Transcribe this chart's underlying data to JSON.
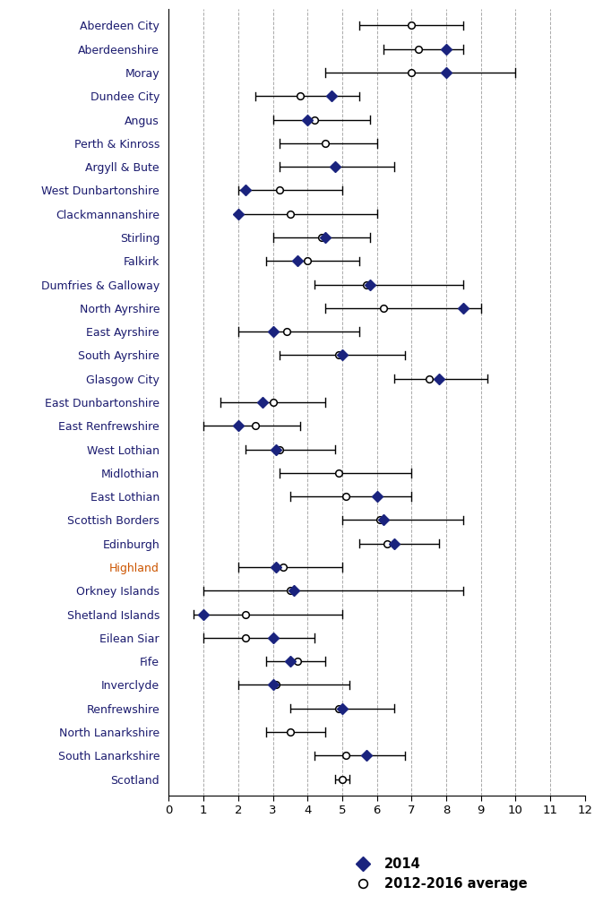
{
  "entries": [
    {
      "label": "Aberdeen City",
      "v2014": null,
      "avg": 7.0,
      "lo": 5.5,
      "hi": 8.5
    },
    {
      "label": "Aberdeenshire",
      "v2014": 8.0,
      "avg": 7.2,
      "lo": 6.2,
      "hi": 8.5
    },
    {
      "label": "Moray",
      "v2014": 8.0,
      "avg": 7.0,
      "lo": 4.5,
      "hi": 10.0
    },
    {
      "label": "Dundee City",
      "v2014": 4.7,
      "avg": 3.8,
      "lo": 2.5,
      "hi": 5.5
    },
    {
      "label": "Angus",
      "v2014": 4.0,
      "avg": 4.2,
      "lo": 3.0,
      "hi": 5.8
    },
    {
      "label": "Perth & Kinross",
      "v2014": null,
      "avg": 4.5,
      "lo": 3.2,
      "hi": 6.0
    },
    {
      "label": "Argyll & Bute",
      "v2014": 4.8,
      "avg": 4.8,
      "lo": 3.2,
      "hi": 6.5
    },
    {
      "label": "West Dunbartonshire",
      "v2014": 2.2,
      "avg": 3.2,
      "lo": 2.0,
      "hi": 5.0
    },
    {
      "label": "Clackmannanshire",
      "v2014": 2.0,
      "avg": 3.5,
      "lo": 2.0,
      "hi": 6.0
    },
    {
      "label": "Stirling",
      "v2014": 4.5,
      "avg": 4.4,
      "lo": 3.0,
      "hi": 5.8
    },
    {
      "label": "Falkirk",
      "v2014": 3.7,
      "avg": 4.0,
      "lo": 2.8,
      "hi": 5.5
    },
    {
      "label": "Dumfries & Galloway",
      "v2014": 5.8,
      "avg": 5.7,
      "lo": 4.2,
      "hi": 8.5
    },
    {
      "label": "North Ayrshire",
      "v2014": 8.5,
      "avg": 6.2,
      "lo": 4.5,
      "hi": 9.0
    },
    {
      "label": "East Ayrshire",
      "v2014": 3.0,
      "avg": 3.4,
      "lo": 2.0,
      "hi": 5.5
    },
    {
      "label": "South Ayrshire",
      "v2014": 5.0,
      "avg": 4.9,
      "lo": 3.2,
      "hi": 6.8
    },
    {
      "label": "Glasgow City",
      "v2014": 7.8,
      "avg": 7.5,
      "lo": 6.5,
      "hi": 9.2
    },
    {
      "label": "East Dunbartonshire",
      "v2014": 2.7,
      "avg": 3.0,
      "lo": 1.5,
      "hi": 4.5
    },
    {
      "label": "East Renfrewshire",
      "v2014": 2.0,
      "avg": 2.5,
      "lo": 1.0,
      "hi": 3.8
    },
    {
      "label": "West Lothian",
      "v2014": 3.1,
      "avg": 3.2,
      "lo": 2.2,
      "hi": 4.8
    },
    {
      "label": "Midlothian",
      "v2014": null,
      "avg": 4.9,
      "lo": 3.2,
      "hi": 7.0
    },
    {
      "label": "East Lothian",
      "v2014": 6.0,
      "avg": 5.1,
      "lo": 3.5,
      "hi": 7.0
    },
    {
      "label": "Scottish Borders",
      "v2014": 6.2,
      "avg": 6.1,
      "lo": 5.0,
      "hi": 8.5
    },
    {
      "label": "Edinburgh",
      "v2014": 6.5,
      "avg": 6.3,
      "lo": 5.5,
      "hi": 7.8
    },
    {
      "label": "Highland",
      "v2014": 3.1,
      "avg": 3.3,
      "lo": 2.0,
      "hi": 5.0
    },
    {
      "label": "Orkney Islands",
      "v2014": 3.6,
      "avg": 3.5,
      "lo": 1.0,
      "hi": 8.5
    },
    {
      "label": "Shetland Islands",
      "v2014": 1.0,
      "avg": 2.2,
      "lo": 0.7,
      "hi": 5.0
    },
    {
      "label": "Eilean Siar",
      "v2014": 3.0,
      "avg": 2.2,
      "lo": 1.0,
      "hi": 4.2
    },
    {
      "label": "Fife",
      "v2014": 3.5,
      "avg": 3.7,
      "lo": 2.8,
      "hi": 4.5
    },
    {
      "label": "Inverclyde",
      "v2014": 3.0,
      "avg": 3.1,
      "lo": 2.0,
      "hi": 5.2
    },
    {
      "label": "Renfrewshire",
      "v2014": 5.0,
      "avg": 4.9,
      "lo": 3.5,
      "hi": 6.5
    },
    {
      "label": "North Lanarkshire",
      "v2014": null,
      "avg": 3.5,
      "lo": 2.8,
      "hi": 4.5
    },
    {
      "label": "South Lanarkshire",
      "v2014": 5.7,
      "avg": 5.1,
      "lo": 4.2,
      "hi": 6.8
    },
    {
      "label": "Scotland",
      "v2014": null,
      "avg": 5.0,
      "lo": 4.8,
      "hi": 5.2
    }
  ],
  "highlight_orange": [
    "Highland"
  ],
  "diamond_color": "#1a237e",
  "circle_facecolor": "white",
  "circle_edgecolor": "black",
  "line_color": "black",
  "grid_color": "#aaaaaa",
  "xlim": [
    0,
    12
  ],
  "xticks": [
    0,
    1,
    2,
    3,
    4,
    5,
    6,
    7,
    8,
    9,
    10,
    11,
    12
  ],
  "legend_labels": [
    "2014",
    "2012-2016 average"
  ],
  "label_fontsize": 9.0,
  "tick_fontsize": 9.5
}
